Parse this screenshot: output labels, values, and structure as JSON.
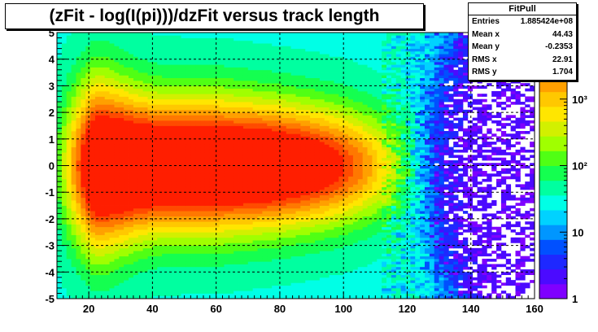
{
  "chart_data": {
    "type": "heatmap",
    "title": "(zFit - log(I(pi)))/dzFit  versus track length",
    "xlabel": "",
    "ylabel": "",
    "xlim": [
      10,
      160
    ],
    "ylim": [
      -5,
      5
    ],
    "x_ticks": [
      "20",
      "40",
      "60",
      "80",
      "100",
      "120",
      "140",
      "160"
    ],
    "y_ticks": [
      "-5",
      "-4",
      "-3",
      "-2",
      "-1",
      "0",
      "1",
      "2",
      "3",
      "4",
      "5"
    ],
    "colorbar": {
      "scale": "log",
      "range": [
        1,
        10000
      ],
      "tick_labels": [
        "1",
        "10",
        "10²",
        "10³"
      ],
      "partial_label": "4"
    },
    "grid": true,
    "palette": [
      "#7f00ff",
      "#4b0aff",
      "#1e28ff",
      "#0050ff",
      "#0096ff",
      "#00d2ff",
      "#00ffe6",
      "#00ffa0",
      "#14ff50",
      "#50ff14",
      "#a0ff00",
      "#d2f000",
      "#ffe600",
      "#ffc800",
      "#ffa000",
      "#ff7800",
      "#ff4b00",
      "#ff1e00"
    ],
    "stats_box": {
      "name": "FitPull",
      "rows": [
        {
          "label": "Entries",
          "value": "1.885424e+08"
        },
        {
          "label": "Mean x",
          "value": "44.43"
        },
        {
          "label": "Mean y",
          "value": "-0.2353"
        },
        {
          "label": "RMS x",
          "value": "22.91"
        },
        {
          "label": "RMS y",
          "value": "1.704"
        }
      ]
    }
  }
}
